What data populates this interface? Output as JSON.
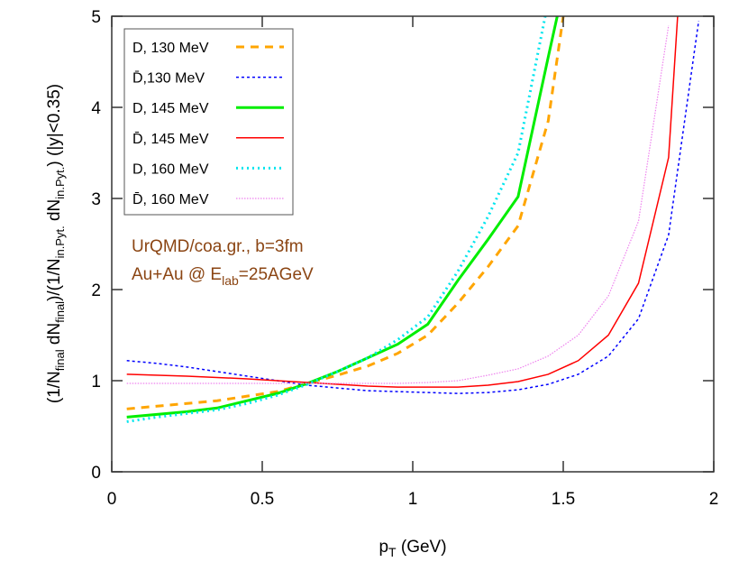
{
  "chart_data": {
    "type": "line",
    "title": "",
    "xlabel": "p_T (GeV)",
    "xlabel_main": "p",
    "xlabel_sub": "T",
    "xlabel_rest": " (GeV)",
    "ylabel": "(1/N_final dN_final)/(1/N_in.Pyt. dN_in.Pyt.) (|y|<0.35)",
    "ylabel_parts": [
      "(1/N",
      "final",
      " dN",
      "final",
      ")/(1/N",
      "in.Pyt.",
      " dN",
      "in.Pyt.",
      ") (|y|<0.35)"
    ],
    "xlim": [
      0,
      2
    ],
    "ylim": [
      0,
      5
    ],
    "xticks": [
      0,
      0.5,
      1,
      1.5,
      2
    ],
    "xtick_labels": [
      "0",
      "0.5",
      "1",
      "1.5",
      "2"
    ],
    "yticks": [
      0,
      1,
      2,
      3,
      4,
      5
    ],
    "ytick_labels": [
      "0",
      "1",
      "2",
      "3",
      "4",
      "5"
    ],
    "grid": false,
    "legend_placement": "top-left",
    "annotations": [
      "UrQMD/coa.gr., b=3fm",
      "Au+Au @ E_lab=25AGeV"
    ],
    "annotation2_parts": [
      "Au+Au @ E",
      "lab",
      "=25AGeV"
    ],
    "series": [
      {
        "name": "D, 130 MeV",
        "color": "#ffa500",
        "style": "dashed",
        "x": [
          0.05,
          0.25,
          0.35,
          0.45,
          0.55,
          0.65,
          0.75,
          0.85,
          0.95,
          1.05,
          1.15,
          1.25,
          1.35,
          1.45,
          1.5
        ],
        "y": [
          0.69,
          0.75,
          0.78,
          0.83,
          0.88,
          0.97,
          1.06,
          1.16,
          1.3,
          1.5,
          1.85,
          2.25,
          2.7,
          3.85,
          5.0
        ]
      },
      {
        "name": "D̄,130 MeV",
        "color": "#0000ff",
        "style": "dotted",
        "x": [
          0.05,
          0.15,
          0.25,
          0.35,
          0.45,
          0.55,
          0.65,
          0.75,
          0.85,
          0.95,
          1.05,
          1.15,
          1.25,
          1.35,
          1.45,
          1.55,
          1.65,
          1.75,
          1.85,
          1.95
        ],
        "y": [
          1.22,
          1.19,
          1.15,
          1.1,
          1.05,
          1.0,
          0.95,
          0.92,
          0.89,
          0.88,
          0.87,
          0.86,
          0.87,
          0.9,
          0.96,
          1.07,
          1.27,
          1.68,
          2.6,
          4.95
        ]
      },
      {
        "name": "D, 145 MeV",
        "color": "#00ee00",
        "style": "solid-thick",
        "x": [
          0.05,
          0.15,
          0.25,
          0.35,
          0.45,
          0.55,
          0.65,
          0.75,
          0.85,
          0.95,
          1.05,
          1.15,
          1.25,
          1.35,
          1.45,
          1.48
        ],
        "y": [
          0.6,
          0.63,
          0.66,
          0.7,
          0.78,
          0.86,
          0.97,
          1.1,
          1.25,
          1.4,
          1.62,
          2.1,
          2.55,
          3.02,
          4.55,
          5.0
        ]
      },
      {
        "name": "D̄, 145 MeV",
        "color": "#ff0000",
        "style": "solid",
        "x": [
          0.05,
          0.25,
          0.45,
          0.55,
          0.65,
          0.75,
          0.85,
          0.95,
          1.05,
          1.15,
          1.25,
          1.35,
          1.45,
          1.55,
          1.65,
          1.75,
          1.85,
          1.88
        ],
        "y": [
          1.07,
          1.05,
          1.02,
          1.0,
          0.98,
          0.96,
          0.94,
          0.93,
          0.93,
          0.93,
          0.95,
          0.99,
          1.07,
          1.22,
          1.5,
          2.07,
          3.45,
          5.0
        ]
      },
      {
        "name": "D, 160 MeV",
        "color": "#00e5ee",
        "style": "dotted-thick",
        "x": [
          0.05,
          0.15,
          0.25,
          0.35,
          0.45,
          0.55,
          0.65,
          0.75,
          0.85,
          0.95,
          1.05,
          1.15,
          1.25,
          1.35,
          1.44
        ],
        "y": [
          0.55,
          0.6,
          0.64,
          0.68,
          0.75,
          0.84,
          0.96,
          1.1,
          1.25,
          1.45,
          1.7,
          2.2,
          2.8,
          3.5,
          5.0
        ]
      },
      {
        "name": "D̄, 160 MeV",
        "color": "#ee82ee",
        "style": "dotted-fine",
        "x": [
          0.05,
          0.55,
          0.75,
          0.95,
          1.05,
          1.15,
          1.25,
          1.35,
          1.45,
          1.55,
          1.65,
          1.75,
          1.85
        ],
        "y": [
          0.97,
          0.97,
          0.97,
          0.97,
          0.98,
          1.0,
          1.06,
          1.13,
          1.27,
          1.5,
          1.93,
          2.75,
          4.9
        ]
      }
    ]
  }
}
